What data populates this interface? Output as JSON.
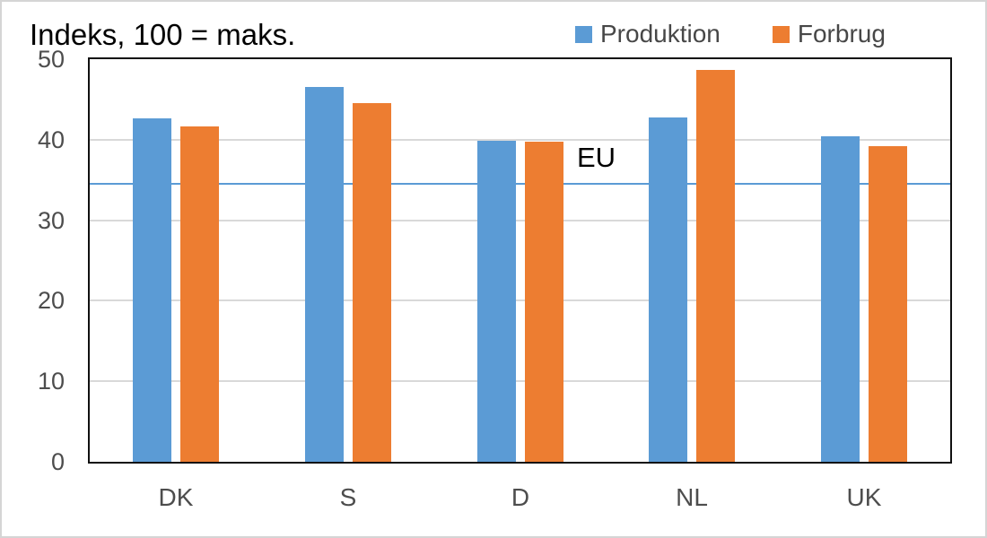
{
  "chart": {
    "title": "Indeks, 100 = maks.",
    "colors": {
      "produktion": "#5B9BD5",
      "forbrug": "#ED7D31",
      "eu_line": "#5B9BD5",
      "gridline": "#D9D9D9",
      "axis_text": "#4D4D4D",
      "plot_border": "#111111",
      "frame_border": "#D5D5D5"
    }
  },
  "chart_data": {
    "type": "bar",
    "title": "Indeks, 100 = maks.",
    "categories": [
      "DK",
      "S",
      "D",
      "NL",
      "UK"
    ],
    "series": [
      {
        "name": "Produktion",
        "color": "#5B9BD5",
        "values": [
          42.7,
          46.5,
          39.9,
          42.8,
          40.4
        ]
      },
      {
        "name": "Forbrug",
        "color": "#ED7D31",
        "values": [
          41.6,
          44.5,
          39.7,
          48.7,
          39.2
        ]
      }
    ],
    "reference_line": {
      "label": "EU",
      "value": 34.5
    },
    "xlabel": "",
    "ylabel": "",
    "ylim": [
      0,
      50
    ],
    "yticks": [
      0,
      10,
      20,
      30,
      40,
      50
    ],
    "grid": true,
    "legend_position": "top-right"
  }
}
